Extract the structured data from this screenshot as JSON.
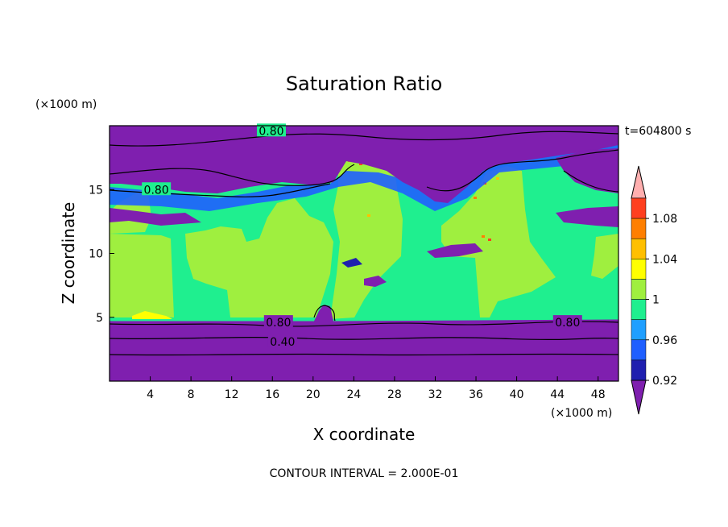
{
  "chart_data": {
    "type": "heatmap",
    "title": "Saturation Ratio",
    "xlabel": "X coordinate",
    "ylabel": "Z coordinate",
    "x_unit": "(×1000 m)",
    "y_unit": "(×1000 m)",
    "xlim": [
      0,
      50
    ],
    "ylim": [
      0,
      20
    ],
    "x_ticks": [
      4,
      8,
      12,
      16,
      20,
      24,
      28,
      32,
      36,
      40,
      44,
      48
    ],
    "y_ticks": [
      5,
      10,
      15
    ],
    "time_label": "t=604800 s",
    "footer": "CONTOUR INTERVAL = 2.000E-01",
    "contour_interval": 0.2,
    "contour_labels": [
      {
        "text": "0.80",
        "x": 15.9,
        "z": 19.6
      },
      {
        "text": "0.80",
        "x": 4.6,
        "z": 15.0
      },
      {
        "text": "0.80",
        "x": 16.6,
        "z": 4.6
      },
      {
        "text": "0.80",
        "x": 45.0,
        "z": 4.6
      },
      {
        "text": "0.40",
        "x": 17.0,
        "z": 3.1
      }
    ],
    "colorbar": {
      "tick_labels": [
        "1.08",
        "1.04",
        "1",
        "0.96",
        "0.92"
      ],
      "levels": [
        {
          "lower": null,
          "upper": 0.92,
          "color": "#7F1FAF"
        },
        {
          "lower": 0.92,
          "upper": 0.94,
          "color": "#1F1FAF"
        },
        {
          "lower": 0.94,
          "upper": 0.96,
          "color": "#1F5FFF"
        },
        {
          "lower": 0.96,
          "upper": 0.98,
          "color": "#1F9FFF"
        },
        {
          "lower": 0.98,
          "upper": 1.0,
          "color": "#1FEF8F"
        },
        {
          "lower": 1.0,
          "upper": 1.02,
          "color": "#9FEF3F"
        },
        {
          "lower": 1.02,
          "upper": 1.04,
          "color": "#FFFF00"
        },
        {
          "lower": 1.04,
          "upper": 1.06,
          "color": "#FFBF00"
        },
        {
          "lower": 1.06,
          "upper": 1.08,
          "color": "#FF7F00"
        },
        {
          "lower": 1.08,
          "upper": 1.1,
          "color": "#FF3F1F"
        },
        {
          "lower": 1.1,
          "upper": null,
          "color": "#FFAFAF"
        }
      ]
    },
    "regions": {
      "purple_lower": {
        "z_top": 4.7
      },
      "purple_upper": {
        "z_bottom_range": [
          12.5,
          16.5
        ]
      }
    }
  }
}
